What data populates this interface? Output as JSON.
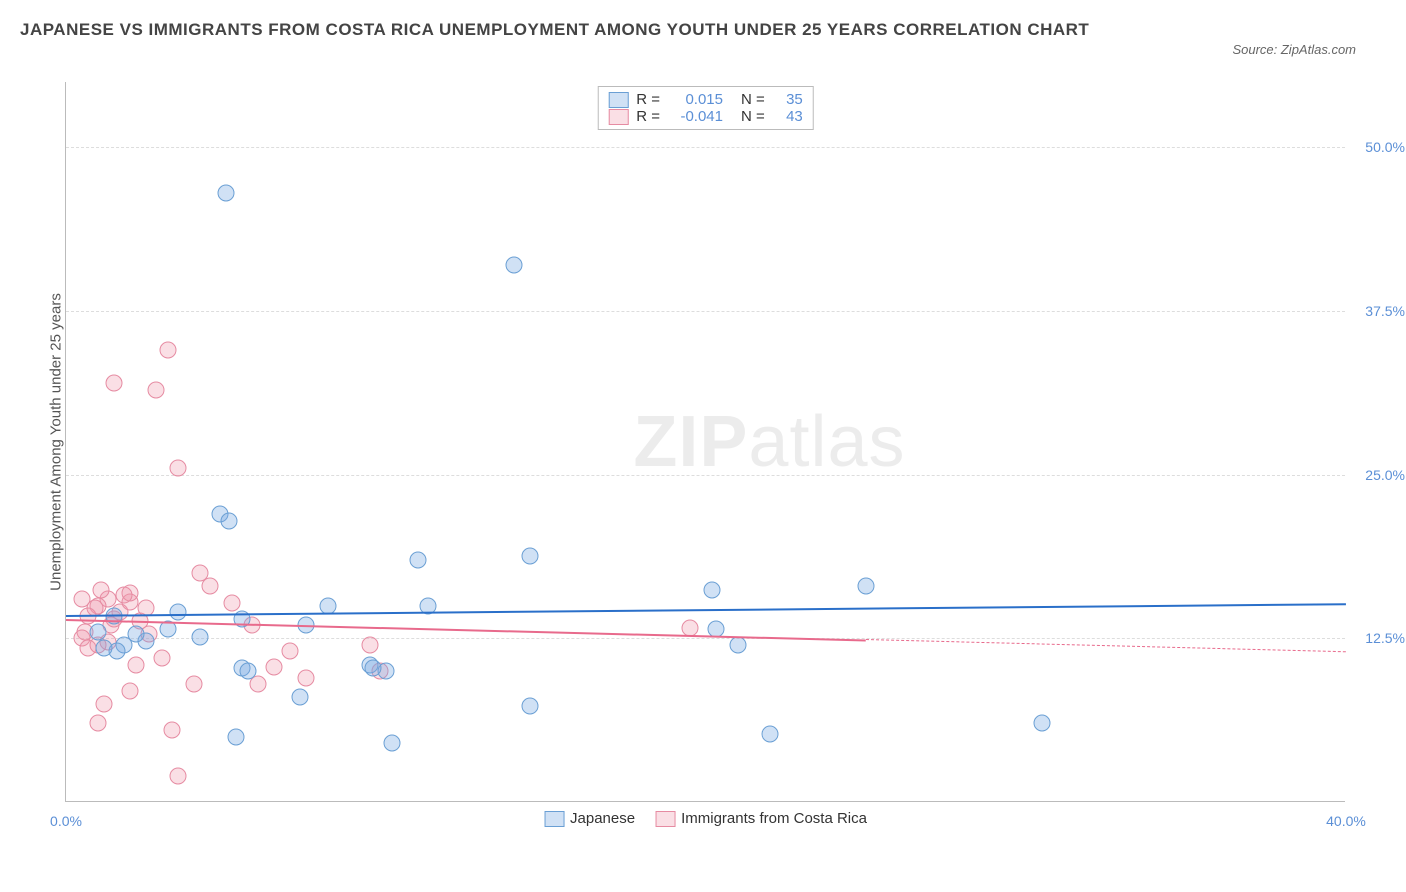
{
  "title": "JAPANESE VS IMMIGRANTS FROM COSTA RICA UNEMPLOYMENT AMONG YOUTH UNDER 25 YEARS CORRELATION CHART",
  "source": "Source: ZipAtlas.com",
  "y_axis_label": "Unemployment Among Youth under 25 years",
  "watermark_bold": "ZIP",
  "watermark_light": "atlas",
  "chart": {
    "type": "scatter",
    "xlim": [
      0,
      40
    ],
    "ylim": [
      0,
      55
    ],
    "x_ticks": [
      {
        "v": 0,
        "label": "0.0%"
      },
      {
        "v": 40,
        "label": "40.0%"
      }
    ],
    "y_ticks": [
      {
        "v": 12.5,
        "label": "12.5%"
      },
      {
        "v": 25.0,
        "label": "25.0%"
      },
      {
        "v": 37.5,
        "label": "37.5%"
      },
      {
        "v": 50.0,
        "label": "50.0%"
      }
    ],
    "grid_color": "#dddddd",
    "background_color": "#ffffff",
    "series": {
      "blue": {
        "name": "Japanese",
        "color_fill": "rgba(120,170,225,0.35)",
        "color_stroke": "#6a9fd4",
        "R": "0.015",
        "N": "35",
        "trend": {
          "x1": 0,
          "y1": 14.3,
          "x2": 40,
          "y2": 15.2,
          "color": "#2a6fc9",
          "dash_x": 40
        },
        "points": [
          [
            5.0,
            46.5
          ],
          [
            14.0,
            41.0
          ],
          [
            4.8,
            22.0
          ],
          [
            5.1,
            21.5
          ],
          [
            8.2,
            15.0
          ],
          [
            11.0,
            18.5
          ],
          [
            11.3,
            15.0
          ],
          [
            14.5,
            18.8
          ],
          [
            20.2,
            16.2
          ],
          [
            25.0,
            16.5
          ],
          [
            20.3,
            13.2
          ],
          [
            21.0,
            12.0
          ],
          [
            30.5,
            6.0
          ],
          [
            22.0,
            5.2
          ],
          [
            14.5,
            7.3
          ],
          [
            10.0,
            10.0
          ],
          [
            10.2,
            4.5
          ],
          [
            9.5,
            10.5
          ],
          [
            9.6,
            10.2
          ],
          [
            7.3,
            8.0
          ],
          [
            5.3,
            5.0
          ],
          [
            5.5,
            14.0
          ],
          [
            4.2,
            12.6
          ],
          [
            3.5,
            14.5
          ],
          [
            3.2,
            13.2
          ],
          [
            2.5,
            12.3
          ],
          [
            2.2,
            12.8
          ],
          [
            1.8,
            12.0
          ],
          [
            1.5,
            14.2
          ],
          [
            1.6,
            11.5
          ],
          [
            1.2,
            11.8
          ],
          [
            1.0,
            13.0
          ],
          [
            5.5,
            10.2
          ],
          [
            5.7,
            10.0
          ],
          [
            7.5,
            13.5
          ]
        ]
      },
      "pink": {
        "name": "Immigrants from Costa Rica",
        "color_fill": "rgba(240,150,170,0.3)",
        "color_stroke": "#e68ba2",
        "R": "-0.041",
        "N": "43",
        "trend": {
          "x1": 0,
          "y1": 14.0,
          "x2": 40,
          "y2": 11.5,
          "color": "#e86a8c",
          "dash_x": 25
        },
        "points": [
          [
            3.2,
            34.5
          ],
          [
            1.5,
            32.0
          ],
          [
            2.8,
            31.5
          ],
          [
            3.5,
            25.5
          ],
          [
            4.2,
            17.5
          ],
          [
            4.5,
            16.5
          ],
          [
            5.2,
            15.2
          ],
          [
            3.0,
            11.0
          ],
          [
            4.0,
            9.0
          ],
          [
            2.0,
            8.5
          ],
          [
            2.2,
            10.5
          ],
          [
            1.2,
            7.5
          ],
          [
            1.0,
            6.0
          ],
          [
            3.3,
            5.5
          ],
          [
            3.5,
            2.0
          ],
          [
            6.0,
            9.0
          ],
          [
            6.5,
            10.3
          ],
          [
            7.0,
            11.5
          ],
          [
            7.5,
            9.5
          ],
          [
            9.5,
            12.0
          ],
          [
            9.8,
            10.0
          ],
          [
            1.3,
            15.5
          ],
          [
            1.0,
            15.0
          ],
          [
            1.5,
            14.0
          ],
          [
            1.7,
            14.5
          ],
          [
            2.0,
            15.3
          ],
          [
            0.6,
            13.0
          ],
          [
            0.5,
            12.5
          ],
          [
            0.7,
            11.8
          ],
          [
            0.9,
            14.8
          ],
          [
            1.4,
            13.5
          ],
          [
            2.3,
            13.8
          ],
          [
            2.5,
            14.8
          ],
          [
            2.0,
            16.0
          ],
          [
            1.1,
            16.2
          ],
          [
            1.3,
            12.2
          ],
          [
            0.7,
            14.2
          ],
          [
            1.8,
            15.8
          ],
          [
            2.6,
            12.8
          ],
          [
            0.5,
            15.5
          ],
          [
            1.0,
            12.0
          ],
          [
            5.8,
            13.5
          ],
          [
            19.5,
            13.3
          ]
        ]
      }
    }
  },
  "legend_labels": {
    "r_label": "R = ",
    "n_label": "N = "
  }
}
